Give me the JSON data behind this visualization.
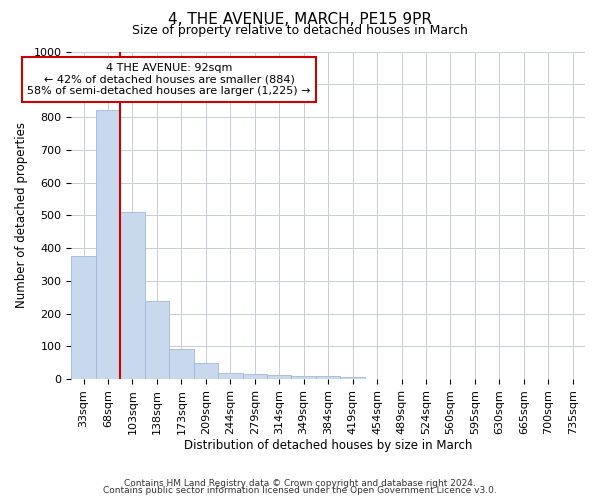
{
  "title": "4, THE AVENUE, MARCH, PE15 9PR",
  "subtitle": "Size of property relative to detached houses in March",
  "xlabel": "Distribution of detached houses by size in March",
  "ylabel": "Number of detached properties",
  "bar_color": "#c8d9ee",
  "bar_edge_color": "#a0b8d8",
  "categories": [
    "33sqm",
    "68sqm",
    "103sqm",
    "138sqm",
    "173sqm",
    "209sqm",
    "244sqm",
    "279sqm",
    "314sqm",
    "349sqm",
    "384sqm",
    "419sqm",
    "454sqm",
    "489sqm",
    "524sqm",
    "560sqm",
    "595sqm",
    "630sqm",
    "665sqm",
    "700sqm",
    "735sqm"
  ],
  "values": [
    375,
    820,
    510,
    237,
    91,
    50,
    20,
    15,
    12,
    8,
    8,
    7,
    0,
    0,
    0,
    0,
    0,
    0,
    0,
    0,
    0
  ],
  "ylim": [
    0,
    1000
  ],
  "yticks": [
    0,
    100,
    200,
    300,
    400,
    500,
    600,
    700,
    800,
    900,
    1000
  ],
  "red_line_x": 2,
  "annotation_text": "4 THE AVENUE: 92sqm\n← 42% of detached houses are smaller (884)\n58% of semi-detached houses are larger (1,225) →",
  "annotation_box_facecolor": "#ffffff",
  "annotation_box_edgecolor": "#cc0000",
  "red_line_color": "#cc0000",
  "footnote1": "Contains HM Land Registry data © Crown copyright and database right 2024.",
  "footnote2": "Contains public sector information licensed under the Open Government Licence v3.0.",
  "background_color": "#ffffff",
  "grid_color": "#c8ccd4",
  "title_fontsize": 11,
  "subtitle_fontsize": 9,
  "axis_label_fontsize": 8.5,
  "tick_fontsize": 8,
  "annot_fontsize": 8
}
